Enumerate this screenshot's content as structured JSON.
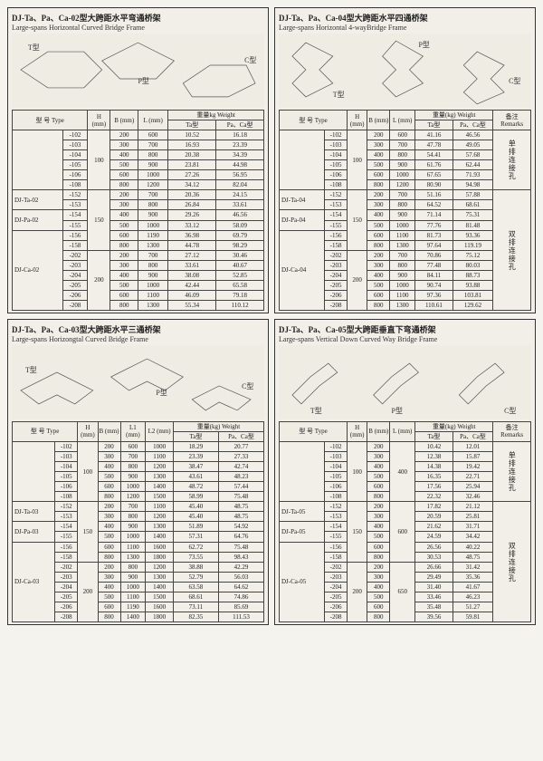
{
  "panels": [
    {
      "id": "p1",
      "title_cn": "DJ-Ta、Pa、Ca-02型大跨距水平弯通桥架",
      "title_en": "Large-spans Horizontal Curved Bridge Frame",
      "diagram_labels": [
        "T型",
        "P型",
        "C型"
      ],
      "head": {
        "type": "型 号\nType",
        "H": "H\n(mm)",
        "B": "B\n(mm)",
        "L": "L\n(mm)",
        "weight": "重量kg  Weight",
        "ta": "Ta型",
        "paca": "Pa、Ca型"
      },
      "type_prefixes": [
        "DJ-Ta-02",
        "DJ-Pa-02",
        "DJ-Ca-02"
      ],
      "has_remarks": false,
      "has_L2": false,
      "groups": [
        {
          "H": "100",
          "rows": [
            [
              "-102",
              "200",
              "600",
              "10.52",
              "16.18"
            ],
            [
              "-103",
              "300",
              "700",
              "16.93",
              "23.39"
            ],
            [
              "-104",
              "400",
              "800",
              "20.38",
              "34.39"
            ],
            [
              "-105",
              "500",
              "900",
              "23.81",
              "44.98"
            ],
            [
              "-106",
              "600",
              "1000",
              "27.26",
              "56.95"
            ],
            [
              "-108",
              "800",
              "1200",
              "34.12",
              "82.04"
            ]
          ]
        },
        {
          "H": "150",
          "rows": [
            [
              "-152",
              "200",
              "700",
              "20.36",
              "24.15"
            ],
            [
              "-153",
              "300",
              "800",
              "26.84",
              "33.61"
            ],
            [
              "-154",
              "400",
              "900",
              "29.26",
              "46.56"
            ],
            [
              "-155",
              "500",
              "1000",
              "33.12",
              "58.09"
            ],
            [
              "-156",
              "600",
              "1190",
              "36.98",
              "69.79"
            ],
            [
              "-158",
              "800",
              "1300",
              "44.78",
              "98.29"
            ]
          ]
        },
        {
          "H": "200",
          "rows": [
            [
              "-202",
              "200",
              "700",
              "27.12",
              "30.46"
            ],
            [
              "-203",
              "300",
              "800",
              "33.61",
              "40.67"
            ],
            [
              "-204",
              "400",
              "900",
              "38.08",
              "52.85"
            ],
            [
              "-205",
              "500",
              "1000",
              "42.44",
              "65.58"
            ],
            [
              "-206",
              "600",
              "1100",
              "46.09",
              "79.18"
            ],
            [
              "-208",
              "800",
              "1300",
              "55.34",
              "110.12"
            ]
          ]
        }
      ]
    },
    {
      "id": "p2",
      "title_cn": "DJ-Ta、Pa、Ca-04型大跨距水平四通桥架",
      "title_en": "Large-spans Horizontal 4-wayBridge Frame",
      "diagram_labels": [
        "T型",
        "P型",
        "C型"
      ],
      "head": {
        "type": "型 号\nType",
        "H": "H\n(mm)",
        "B": "B\n(mm)",
        "L": "L\n(mm)",
        "weight": "重量(kg) Weight",
        "ta": "Ta型",
        "paca": "Pa、Ca型",
        "remarks": "备注\nRemarks"
      },
      "type_prefixes": [
        "DJ-Ta-04",
        "DJ-Pa-04",
        "DJ-Ca-04"
      ],
      "has_remarks": true,
      "has_L2": false,
      "remark_split": 6,
      "remarks": [
        "单排连接孔",
        "双排连接孔"
      ],
      "groups": [
        {
          "H": "100",
          "rows": [
            [
              "-102",
              "200",
              "600",
              "41.16",
              "46.56"
            ],
            [
              "-103",
              "300",
              "700",
              "47.78",
              "49.05"
            ],
            [
              "-104",
              "400",
              "800",
              "54.41",
              "57.68"
            ],
            [
              "-105",
              "500",
              "900",
              "61.76",
              "62.44"
            ],
            [
              "-106",
              "600",
              "1000",
              "67.65",
              "71.93"
            ],
            [
              "-108",
              "800",
              "1200",
              "80.90",
              "94.98"
            ]
          ]
        },
        {
          "H": "150",
          "rows": [
            [
              "-152",
              "200",
              "700",
              "51.16",
              "57.88"
            ],
            [
              "-153",
              "300",
              "800",
              "64.52",
              "68.61"
            ],
            [
              "-154",
              "400",
              "900",
              "71.14",
              "75.31"
            ],
            [
              "-155",
              "500",
              "1000",
              "77.76",
              "81.48"
            ],
            [
              "-156",
              "600",
              "1100",
              "81.73",
              "93.36"
            ],
            [
              "-158",
              "800",
              "1300",
              "97.64",
              "119.19"
            ]
          ]
        },
        {
          "H": "200",
          "rows": [
            [
              "-202",
              "200",
              "700",
              "70.86",
              "75.12"
            ],
            [
              "-203",
              "300",
              "800",
              "77.48",
              "80.03"
            ],
            [
              "-204",
              "400",
              "900",
              "84.11",
              "88.73"
            ],
            [
              "-205",
              "500",
              "1000",
              "90.74",
              "93.88"
            ],
            [
              "-206",
              "600",
              "1100",
              "97.36",
              "103.81"
            ],
            [
              "-208",
              "800",
              "1300",
              "110.61",
              "129.62"
            ]
          ]
        }
      ]
    },
    {
      "id": "p3",
      "title_cn": "DJ-Ta、Pa、Ca-03型大跨距水平三通桥架",
      "title_en": "Large-spans Horizongtal Curved Bridge Frame",
      "diagram_labels": [
        "T型",
        "P型",
        "C型"
      ],
      "head": {
        "type": "型 号\nType",
        "H": "H\n(mm)",
        "B": "B\n(mm)",
        "L1": "L1\n(mm)",
        "L2": "L2\n(mm)",
        "weight": "重量(kg) Weight",
        "ta": "Ta型",
        "paca": "Pa、Ca型"
      },
      "type_prefixes": [
        "DJ-Ta-03",
        "DJ-Pa-03",
        "DJ-Ca-03"
      ],
      "has_remarks": false,
      "has_L2": true,
      "groups": [
        {
          "H": "100",
          "rows": [
            [
              "-102",
              "200",
              "600",
              "1000",
              "18.29",
              "20.77"
            ],
            [
              "-103",
              "300",
              "700",
              "1100",
              "23.39",
              "27.33"
            ],
            [
              "-104",
              "400",
              "800",
              "1200",
              "38.47",
              "42.74"
            ],
            [
              "-105",
              "500",
              "900",
              "1300",
              "43.61",
              "48.23"
            ],
            [
              "-106",
              "600",
              "1000",
              "1400",
              "48.72",
              "57.44"
            ],
            [
              "-108",
              "800",
              "1200",
              "1500",
              "58.99",
              "75.48"
            ]
          ]
        },
        {
          "H": "150",
          "rows": [
            [
              "-152",
              "200",
              "700",
              "1100",
              "45.40",
              "48.75"
            ],
            [
              "-153",
              "300",
              "800",
              "1200",
              "45.40",
              "48.75"
            ],
            [
              "-154",
              "400",
              "900",
              "1300",
              "51.89",
              "54.92"
            ],
            [
              "-155",
              "500",
              "1000",
              "1400",
              "57.31",
              "64.76"
            ],
            [
              "-156",
              "600",
              "1100",
              "1600",
              "62.72",
              "75.48"
            ],
            [
              "-158",
              "800",
              "1300",
              "1800",
              "73.55",
              "98.43"
            ]
          ]
        },
        {
          "H": "200",
          "rows": [
            [
              "-202",
              "200",
              "800",
              "1200",
              "38.88",
              "42.29"
            ],
            [
              "-203",
              "300",
              "900",
              "1300",
              "52.79",
              "56.03"
            ],
            [
              "-204",
              "400",
              "1000",
              "1400",
              "63.58",
              "64.62"
            ],
            [
              "-205",
              "500",
              "1100",
              "1500",
              "68.61",
              "74.86"
            ],
            [
              "-206",
              "600",
              "1190",
              "1600",
              "73.11",
              "85.69"
            ],
            [
              "-208",
              "800",
              "1400",
              "1800",
              "82.35",
              "111.53"
            ]
          ]
        }
      ]
    },
    {
      "id": "p4",
      "title_cn": "DJ-Ta、Pa、Ca-05型大跨距垂直下弯通桥架",
      "title_en": "Large-spans Vertical Down Curved Way Bridge Frame",
      "diagram_labels": [
        "T型",
        "P型",
        "C型"
      ],
      "head": {
        "type": "型 号\nType",
        "H": "H\n(mm)",
        "B": "B\n(mm)",
        "L": "L\n(mm)",
        "weight": "重量(kg) Weight",
        "ta": "Ta型",
        "paca": "Pa、Ca型",
        "remarks": "备注\nRemarks"
      },
      "type_prefixes": [
        "DJ-Ta-05",
        "DJ-Pa-05",
        "DJ-Ca-05"
      ],
      "has_remarks": true,
      "has_L2": false,
      "remark_split": 6,
      "remarks": [
        "单排连接孔",
        "双排连接孔"
      ],
      "L_per_group": true,
      "groups": [
        {
          "H": "100",
          "L": "400",
          "rows": [
            [
              "-102",
              "200",
              "10.42",
              "12.01"
            ],
            [
              "-103",
              "300",
              "12.38",
              "15.87"
            ],
            [
              "-104",
              "400",
              "14.38",
              "19.42"
            ],
            [
              "-105",
              "500",
              "16.35",
              "22.71"
            ],
            [
              "-106",
              "600",
              "17.56",
              "25.94"
            ],
            [
              "-108",
              "800",
              "22.32",
              "32.46"
            ]
          ]
        },
        {
          "H": "150",
          "L": "600",
          "rows": [
            [
              "-152",
              "200",
              "17.82",
              "21.12"
            ],
            [
              "-153",
              "300",
              "20.59",
              "25.81"
            ],
            [
              "-154",
              "400",
              "21.62",
              "31.71"
            ],
            [
              "-155",
              "500",
              "24.59",
              "34.42"
            ],
            [
              "-156",
              "600",
              "26.56",
              "40.22"
            ],
            [
              "-158",
              "800",
              "30.53",
              "48.75"
            ]
          ]
        },
        {
          "H": "200",
          "L": "650",
          "rows": [
            [
              "-202",
              "200",
              "26.66",
              "31.42"
            ],
            [
              "-203",
              "300",
              "29.49",
              "35.36"
            ],
            [
              "-204",
              "400",
              "31.40",
              "41.67"
            ],
            [
              "-205",
              "500",
              "33.46",
              "46.23"
            ],
            [
              "-206",
              "600",
              "35.48",
              "51.27"
            ],
            [
              "-208",
              "800",
              "39.56",
              "59.81"
            ]
          ]
        }
      ]
    }
  ],
  "style": {
    "bg": "#f5f3ee",
    "panel_bg": "#f2efe8",
    "border": "#333",
    "text": "#222",
    "font_body": 7,
    "font_title": 9
  }
}
